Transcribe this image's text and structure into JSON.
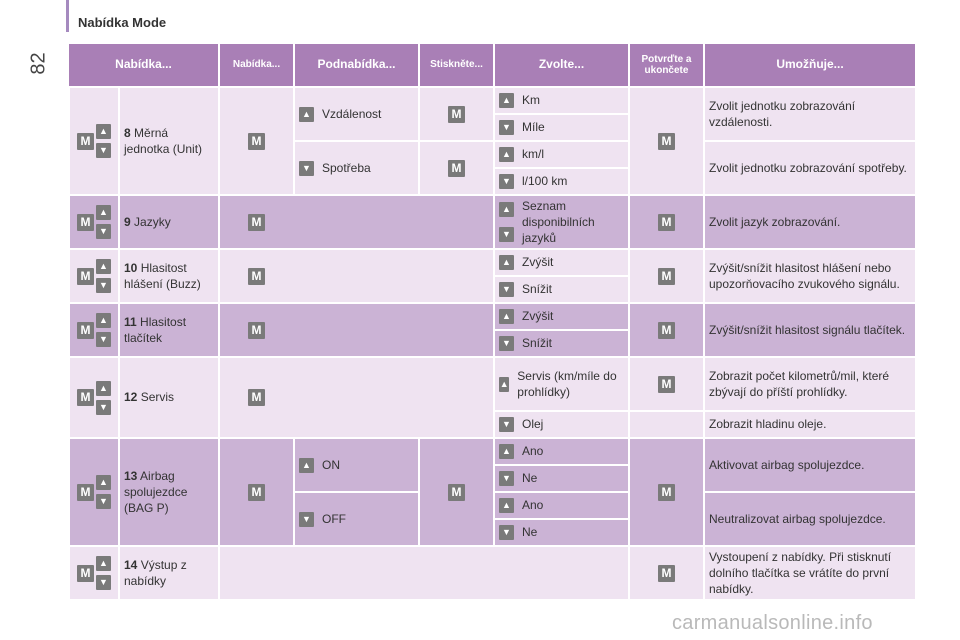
{
  "page_number": "82",
  "section_title": "Nabídka Mode",
  "header": {
    "menu1": "Nabídka...",
    "menu2": "Nabídka...",
    "submenu": "Podnabídka...",
    "press": "Stiskněte...",
    "choose": "Zvolte...",
    "confirm": "Potvrďte a ukončete",
    "allows": "Umožňuje..."
  },
  "glyphs": {
    "up": "▲",
    "down": "▼",
    "m": "M"
  },
  "rows": [
    {
      "num": "8",
      "label": "Měrná jednotka (Unit)",
      "sub1": "Vzdálenost",
      "sub2": "Spotřeba",
      "c1": "Km",
      "c2": "Míle",
      "c3": "km/l",
      "c4": "l/100 km",
      "d1": "Zvolit jednotku zobrazování vzdálenosti.",
      "d2": "Zvolit jednotku zobrazování spotřeby."
    },
    {
      "num": "9",
      "label": "Jazyky",
      "c1": "Seznam disponibilních jazyků",
      "d1": "Zvolit jazyk zobrazování."
    },
    {
      "num": "10",
      "label": "Hlasitost hlášení (Buzz)",
      "c1": "Zvýšit",
      "c2": "Snížit",
      "d1": "Zvýšit/snížit hlasitost hlášení nebo upozorňovacího zvukového signálu."
    },
    {
      "num": "11",
      "label": "Hlasitost tlačítek",
      "c1": "Zvýšit",
      "c2": "Snížit",
      "d1": "Zvýšit/snížit hlasitost signálu tlačítek."
    },
    {
      "num": "12",
      "label": "Servis",
      "c1": "Servis (km/míle do prohlídky)",
      "c2": "Olej",
      "d1": "Zobrazit počet kilometrů/mil, které zbývají do příští prohlídky.",
      "d2": "Zobrazit hladinu oleje."
    },
    {
      "num": "13",
      "label": "Airbag spolujezdce (BAG P)",
      "sub1": "ON",
      "sub2": "OFF",
      "c1": "Ano",
      "c2": "Ne",
      "c3": "Ano",
      "c4": "Ne",
      "d1": "Aktivovat airbag spolujezdce.",
      "d2": "Neutralizovat airbag spolujezdce."
    },
    {
      "num": "14",
      "label": "Výstup z nabídky",
      "d1": "Vystoupení z nabídky. Při stisknutí dolního tlačítka se vrátíte do první nabídky."
    }
  ],
  "watermark": "carmanualsonline.info"
}
